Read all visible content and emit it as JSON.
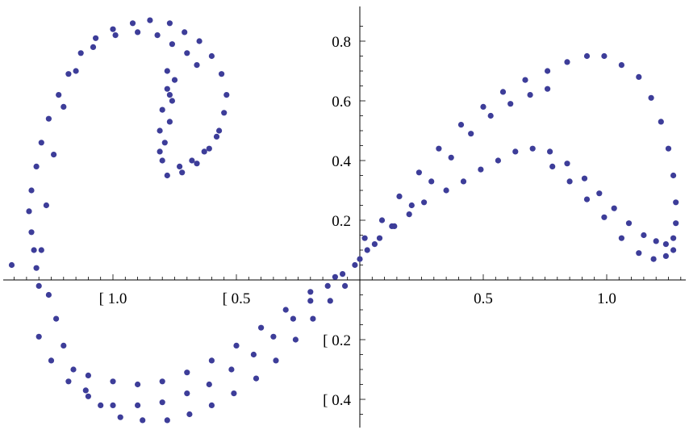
{
  "chart_data": {
    "type": "scatter",
    "title": "",
    "xlabel": "",
    "ylabel": "",
    "xlim": [
      -1.47,
      1.3
    ],
    "ylim": [
      -0.51,
      0.9
    ],
    "grid": false,
    "marker_color": "#3d3d99",
    "x_ticks": [
      {
        "value": -1.0,
        "label": "[ 1.0"
      },
      {
        "value": -0.5,
        "label": "[ 0.5"
      },
      {
        "value": 0.5,
        "label": "0.5"
      },
      {
        "value": 1.0,
        "label": "1.0"
      }
    ],
    "y_ticks": [
      {
        "value": 0.8,
        "label": "0.8"
      },
      {
        "value": 0.6,
        "label": "0.6"
      },
      {
        "value": 0.4,
        "label": "0.4"
      },
      {
        "value": 0.2,
        "label": "0.2"
      },
      {
        "value": -0.2,
        "label": "[ 0.2"
      },
      {
        "value": -0.4,
        "label": "[ 0.4"
      }
    ],
    "series": [
      {
        "points": [
          [
            -1.41,
            0.05
          ],
          [
            -1.3,
            -0.02
          ],
          [
            -1.31,
            0.04
          ],
          [
            -1.32,
            0.1
          ],
          [
            -1.33,
            0.16
          ],
          [
            -1.34,
            0.23
          ],
          [
            -1.33,
            0.3
          ],
          [
            -1.31,
            0.38
          ],
          [
            -1.29,
            0.46
          ],
          [
            -1.26,
            0.54
          ],
          [
            -1.22,
            0.62
          ],
          [
            -1.18,
            0.69
          ],
          [
            -1.13,
            0.76
          ],
          [
            -1.07,
            0.81
          ],
          [
            -1.0,
            0.84
          ],
          [
            -0.92,
            0.86
          ],
          [
            -0.85,
            0.87
          ],
          [
            -0.77,
            0.86
          ],
          [
            -0.71,
            0.83
          ],
          [
            -0.65,
            0.8
          ],
          [
            -0.6,
            0.75
          ],
          [
            -0.56,
            0.69
          ],
          [
            -0.54,
            0.62
          ],
          [
            -0.55,
            0.56
          ],
          [
            -0.57,
            0.5
          ],
          [
            -0.61,
            0.44
          ],
          [
            -0.66,
            0.39
          ],
          [
            -0.72,
            0.36
          ],
          [
            -0.78,
            0.35
          ],
          [
            -0.8,
            0.4
          ],
          [
            -0.79,
            0.46
          ],
          [
            -0.77,
            0.53
          ],
          [
            -0.76,
            0.6
          ],
          [
            -0.75,
            0.67
          ],
          [
            -1.29,
            0.1
          ],
          [
            -1.27,
            0.25
          ],
          [
            -1.24,
            0.42
          ],
          [
            -1.2,
            0.58
          ],
          [
            -1.15,
            0.7
          ],
          [
            -1.08,
            0.78
          ],
          [
            -0.99,
            0.82
          ],
          [
            -0.9,
            0.83
          ],
          [
            -0.82,
            0.82
          ],
          [
            -0.76,
            0.79
          ],
          [
            -0.7,
            0.76
          ],
          [
            -0.66,
            0.72
          ],
          [
            -0.81,
            0.43
          ],
          [
            -0.81,
            0.5
          ],
          [
            -0.8,
            0.57
          ],
          [
            -0.78,
            0.64
          ],
          [
            -0.73,
            0.38
          ],
          [
            -0.68,
            0.4
          ],
          [
            -0.63,
            0.43
          ],
          [
            -0.58,
            0.48
          ],
          [
            -0.77,
            0.62
          ],
          [
            -0.78,
            0.7
          ]
        ]
      },
      {
        "points": [
          [
            -1.26,
            -0.05
          ],
          [
            -1.23,
            -0.13
          ],
          [
            -1.2,
            -0.22
          ],
          [
            -1.16,
            -0.3
          ],
          [
            -1.11,
            -0.37
          ],
          [
            -1.05,
            -0.42
          ],
          [
            -0.97,
            -0.46
          ],
          [
            -0.88,
            -0.47
          ],
          [
            -0.78,
            -0.47
          ],
          [
            -0.69,
            -0.45
          ],
          [
            -0.6,
            -0.42
          ],
          [
            -0.51,
            -0.38
          ],
          [
            -0.42,
            -0.33
          ],
          [
            -0.34,
            -0.27
          ],
          [
            -0.26,
            -0.2
          ],
          [
            -0.19,
            -0.13
          ],
          [
            -0.12,
            -0.07
          ],
          [
            -0.06,
            -0.02
          ],
          [
            -1.3,
            -0.19
          ],
          [
            -1.25,
            -0.27
          ],
          [
            -1.18,
            -0.34
          ],
          [
            -1.1,
            -0.39
          ],
          [
            -1.0,
            -0.42
          ],
          [
            -0.9,
            -0.42
          ],
          [
            -0.8,
            -0.41
          ],
          [
            -0.7,
            -0.38
          ],
          [
            -0.61,
            -0.35
          ],
          [
            -0.52,
            -0.3
          ],
          [
            -0.43,
            -0.25
          ],
          [
            -0.35,
            -0.19
          ],
          [
            -0.27,
            -0.13
          ],
          [
            -0.2,
            -0.07
          ],
          [
            -0.13,
            -0.02
          ],
          [
            -0.07,
            0.02
          ],
          [
            -1.1,
            -0.32
          ],
          [
            -1.0,
            -0.34
          ],
          [
            -0.9,
            -0.35
          ],
          [
            -0.8,
            -0.34
          ],
          [
            -0.7,
            -0.31
          ],
          [
            -0.6,
            -0.27
          ],
          [
            -0.5,
            -0.22
          ],
          [
            -0.4,
            -0.16
          ],
          [
            -0.3,
            -0.1
          ],
          [
            -0.2,
            -0.04
          ],
          [
            -0.1,
            0.01
          ],
          [
            -0.02,
            0.05
          ]
        ]
      },
      {
        "points": [
          [
            0.0,
            0.07
          ],
          [
            0.06,
            0.12
          ],
          [
            0.13,
            0.18
          ],
          [
            0.21,
            0.25
          ],
          [
            0.29,
            0.33
          ],
          [
            0.37,
            0.41
          ],
          [
            0.45,
            0.49
          ],
          [
            0.53,
            0.55
          ],
          [
            0.61,
            0.59
          ],
          [
            0.69,
            0.62
          ],
          [
            0.76,
            0.64
          ],
          [
            0.02,
            0.14
          ],
          [
            0.09,
            0.2
          ],
          [
            0.16,
            0.28
          ],
          [
            0.24,
            0.36
          ],
          [
            0.32,
            0.44
          ],
          [
            0.41,
            0.52
          ],
          [
            0.5,
            0.58
          ],
          [
            0.58,
            0.63
          ],
          [
            0.67,
            0.67
          ],
          [
            0.76,
            0.7
          ],
          [
            0.84,
            0.73
          ],
          [
            0.92,
            0.75
          ],
          [
            0.99,
            0.75
          ],
          [
            1.06,
            0.72
          ],
          [
            1.13,
            0.68
          ],
          [
            1.18,
            0.61
          ],
          [
            1.22,
            0.53
          ],
          [
            1.25,
            0.44
          ],
          [
            1.27,
            0.35
          ],
          [
            1.28,
            0.26
          ],
          [
            1.28,
            0.19
          ],
          [
            1.27,
            0.14
          ],
          [
            1.24,
            0.12
          ],
          [
            1.2,
            0.13
          ],
          [
            1.15,
            0.15
          ],
          [
            1.09,
            0.19
          ],
          [
            1.03,
            0.24
          ],
          [
            0.97,
            0.29
          ],
          [
            0.91,
            0.34
          ],
          [
            0.84,
            0.39
          ],
          [
            0.77,
            0.43
          ],
          [
            0.7,
            0.44
          ],
          [
            0.63,
            0.43
          ],
          [
            0.56,
            0.4
          ],
          [
            0.49,
            0.37
          ],
          [
            0.42,
            0.33
          ],
          [
            0.35,
            0.3
          ],
          [
            0.26,
            0.26
          ],
          [
            0.2,
            0.22
          ],
          [
            0.14,
            0.18
          ],
          [
            0.08,
            0.14
          ],
          [
            0.03,
            0.1
          ],
          [
            0.78,
            0.38
          ],
          [
            0.85,
            0.33
          ],
          [
            0.92,
            0.27
          ],
          [
            0.99,
            0.21
          ],
          [
            1.06,
            0.14
          ],
          [
            1.13,
            0.09
          ],
          [
            1.19,
            0.07
          ],
          [
            1.24,
            0.08
          ],
          [
            1.27,
            0.1
          ]
        ]
      }
    ]
  }
}
